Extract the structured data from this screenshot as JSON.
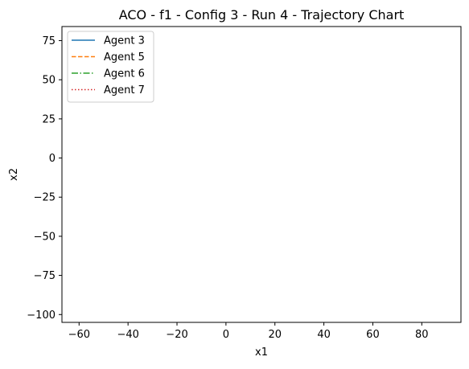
{
  "chart_data": {
    "type": "line",
    "title": "ACO - f1 - Config 3 - Run 4 - Trajectory Chart",
    "xlabel": "x1",
    "ylabel": "x2",
    "xlim": [
      -67,
      96
    ],
    "ylim": [
      -105,
      84
    ],
    "xticks": [
      -60,
      -40,
      -20,
      0,
      20,
      40,
      60,
      80
    ],
    "yticks": [
      75,
      50,
      25,
      0,
      -25,
      -50,
      -75,
      -100
    ],
    "xtick_labels": [
      "−60",
      "−40",
      "−20",
      "0",
      "20",
      "40",
      "60",
      "80"
    ],
    "ytick_labels": [
      "75",
      "50",
      "25",
      "0",
      "−25",
      "−50",
      "−75",
      "−100"
    ],
    "grid": false,
    "legend_position": "upper-left",
    "series": [
      {
        "name": "Agent 3",
        "color": "#1f77b4",
        "linestyle": "solid",
        "x": [],
        "y": []
      },
      {
        "name": "Agent 5",
        "color": "#ff7f0e",
        "linestyle": "dashed",
        "x": [],
        "y": []
      },
      {
        "name": "Agent 6",
        "color": "#2ca02c",
        "linestyle": "dashdot",
        "x": [],
        "y": []
      },
      {
        "name": "Agent 7",
        "color": "#d62728",
        "linestyle": "dotted",
        "x": [],
        "y": []
      }
    ]
  }
}
